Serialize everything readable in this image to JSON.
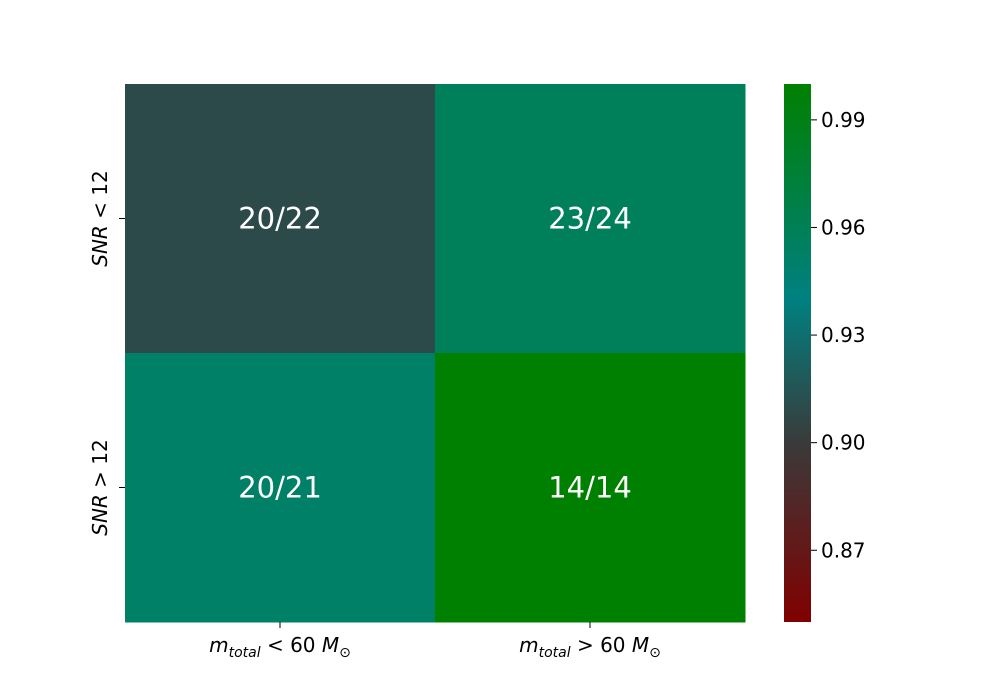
{
  "chart_data": {
    "type": "heatmap",
    "title": "",
    "xlabel": "",
    "ylabel": "",
    "x_categories": [
      {
        "base": "m",
        "sub": "total",
        "op": "<",
        "num": "60",
        "unit": "M",
        "unit_sub": "⊙"
      },
      {
        "base": "m",
        "sub": "total",
        "op": ">",
        "num": "60",
        "unit": "M",
        "unit_sub": "⊙"
      }
    ],
    "y_categories": [
      {
        "var": "SNR",
        "op": "<",
        "num": "12"
      },
      {
        "var": "SNR",
        "op": ">",
        "num": "12"
      }
    ],
    "cells": [
      [
        {
          "label": "20/22",
          "value": 0.909
        },
        {
          "label": "23/24",
          "value": 0.958
        }
      ],
      [
        {
          "label": "20/21",
          "value": 0.952
        },
        {
          "label": "14/14",
          "value": 1.0
        }
      ]
    ],
    "colorbar": {
      "range": [
        0.85,
        1.0
      ],
      "ticks": [
        "0.87",
        "0.90",
        "0.93",
        "0.96",
        "0.99"
      ],
      "colors": [
        "#800000",
        "#3a3a3a",
        "#008080",
        "#008000"
      ]
    },
    "cell_text_color": "#ffffff"
  }
}
